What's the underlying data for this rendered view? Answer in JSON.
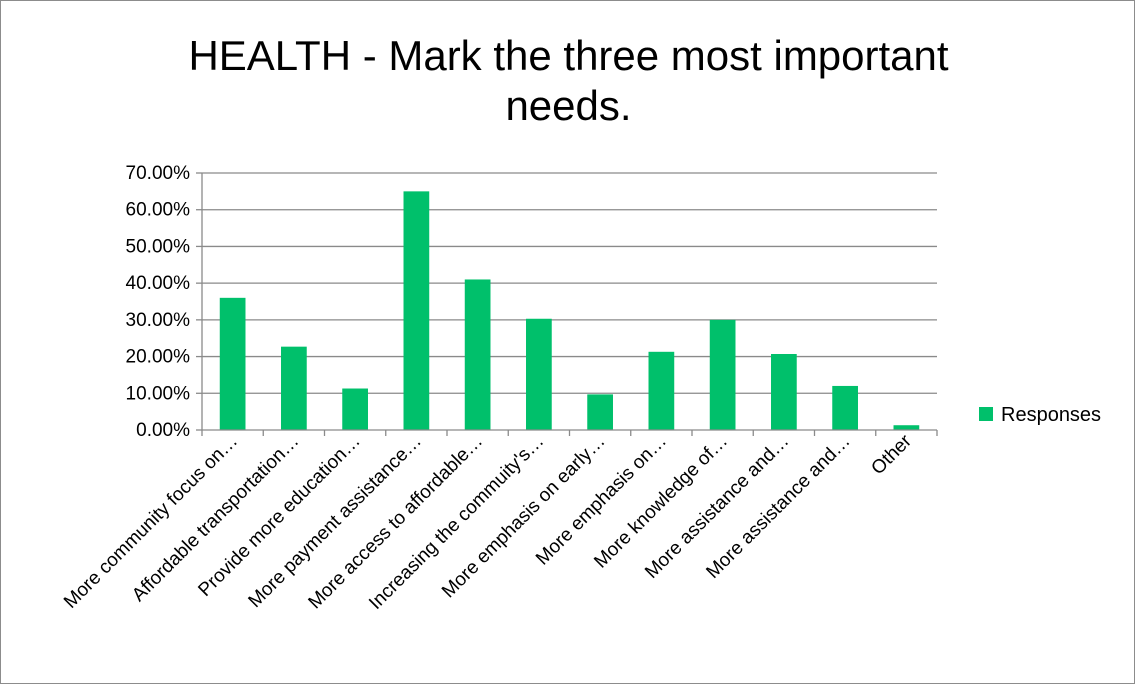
{
  "chart_data": {
    "type": "bar",
    "title_lines": [
      "HEALTH - Mark the three most important",
      "needs."
    ],
    "categories": [
      "More community focus on…",
      "Affordable transportation…",
      "Provide more education…",
      "More payment assistance…",
      "More access to affordable…",
      "Increasing the commuity's…",
      "More emphasis on early…",
      "More emphasis on…",
      "More knowledge of…",
      "More assistance and…",
      "More assistance and…",
      "Other"
    ],
    "series": [
      {
        "name": "Responses",
        "color": "#00c06b",
        "values": [
          0.36,
          0.227,
          0.113,
          0.65,
          0.41,
          0.303,
          0.097,
          0.213,
          0.3,
          0.207,
          0.12,
          0.013
        ]
      }
    ],
    "ylim": [
      0,
      0.7
    ],
    "yticks": [
      0,
      0.1,
      0.2,
      0.3,
      0.4,
      0.5,
      0.6,
      0.7
    ],
    "ytick_labels": [
      "0.00%",
      "10.00%",
      "20.00%",
      "30.00%",
      "40.00%",
      "50.00%",
      "60.00%",
      "70.00%"
    ],
    "grid": true,
    "legend_position": "right",
    "xlabel": "",
    "ylabel": ""
  }
}
